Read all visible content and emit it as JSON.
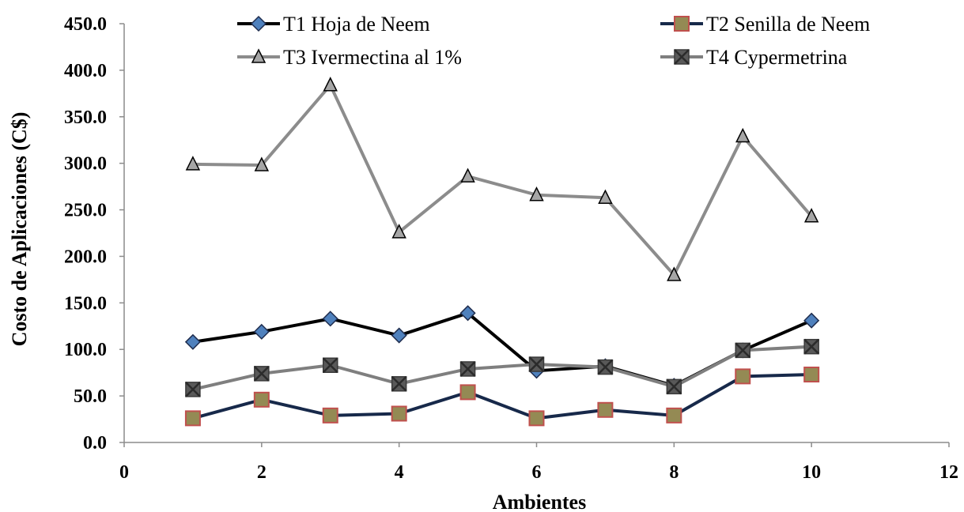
{
  "chart_data": {
    "type": "line",
    "xlabel": "Ambientes",
    "ylabel": "Costo de Aplicaciones (C$)",
    "xlim": [
      0,
      12
    ],
    "ylim": [
      0,
      450
    ],
    "x_ticks": [
      "0",
      "2",
      "4",
      "6",
      "8",
      "10",
      "12"
    ],
    "y_ticks": [
      "0.0",
      "50.0",
      "100.0",
      "150.0",
      "200.0",
      "250.0",
      "300.0",
      "350.0",
      "400.0",
      "450.0"
    ],
    "x": [
      1,
      2,
      3,
      4,
      5,
      6,
      7,
      8,
      9,
      10
    ],
    "grid": false,
    "legend_position": "top",
    "series": [
      {
        "name": "T1 Hoja de Neem",
        "marker": "diamond",
        "line_color": "#000000",
        "marker_fill": "#4f81bd",
        "marker_stroke": "#1f2d4e",
        "values": [
          108,
          119,
          133,
          115,
          139,
          77,
          82,
          61,
          99,
          131
        ]
      },
      {
        "name": "T2 Senilla de Neem",
        "marker": "square",
        "line_color": "#17294a",
        "marker_fill": "#948a54",
        "marker_stroke": "#c0504d",
        "values": [
          26,
          46,
          29,
          31,
          54,
          26,
          35,
          29,
          71,
          73
        ]
      },
      {
        "name": "T3 Ivermectina al 1%",
        "marker": "triangle",
        "line_color": "#8c8c8c",
        "marker_fill": "#a6a6a6",
        "marker_stroke": "#000000",
        "values": [
          299,
          298,
          384,
          226,
          286,
          266,
          263,
          180,
          329,
          243
        ]
      },
      {
        "name": "T4 Cypermetrina",
        "marker": "xsquare",
        "line_color": "#7f7f7f",
        "marker_fill": "#595959",
        "marker_stroke": "#3a3a3a",
        "values": [
          57,
          74,
          83,
          63,
          79,
          84,
          81,
          60,
          99,
          103
        ]
      }
    ]
  }
}
